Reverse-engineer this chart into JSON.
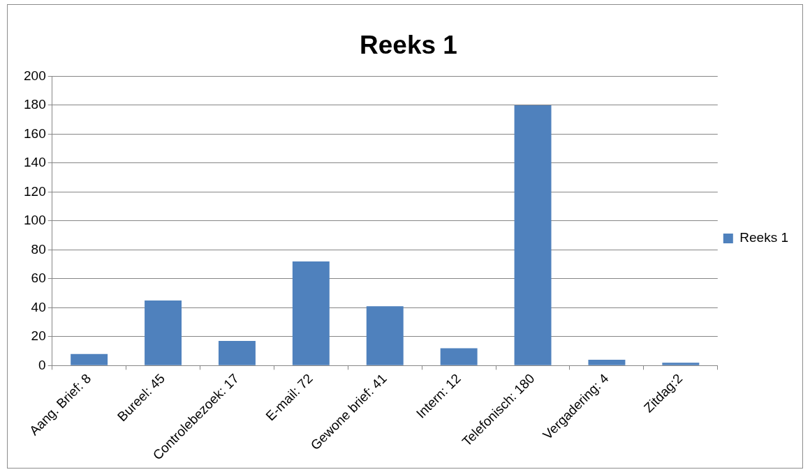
{
  "chart_data": {
    "type": "bar",
    "title": "Reeks 1",
    "categories": [
      "Aang. Brief: 8",
      "Bureel: 45",
      "Controlebezoek: 17",
      "E-mail: 72",
      "Gewone brief: 41",
      "Intern: 12",
      "Telefonisch: 180",
      "Vergadering: 4",
      "Zitdag:2"
    ],
    "series": [
      {
        "name": "Reeks 1",
        "color": "#4f81bd",
        "values": [
          8,
          45,
          17,
          72,
          41,
          12,
          180,
          4,
          2
        ]
      }
    ],
    "ylim": [
      0,
      200
    ],
    "yticks": [
      0,
      20,
      40,
      60,
      80,
      100,
      120,
      140,
      160,
      180,
      200
    ],
    "grid": "y",
    "legend": "right"
  }
}
